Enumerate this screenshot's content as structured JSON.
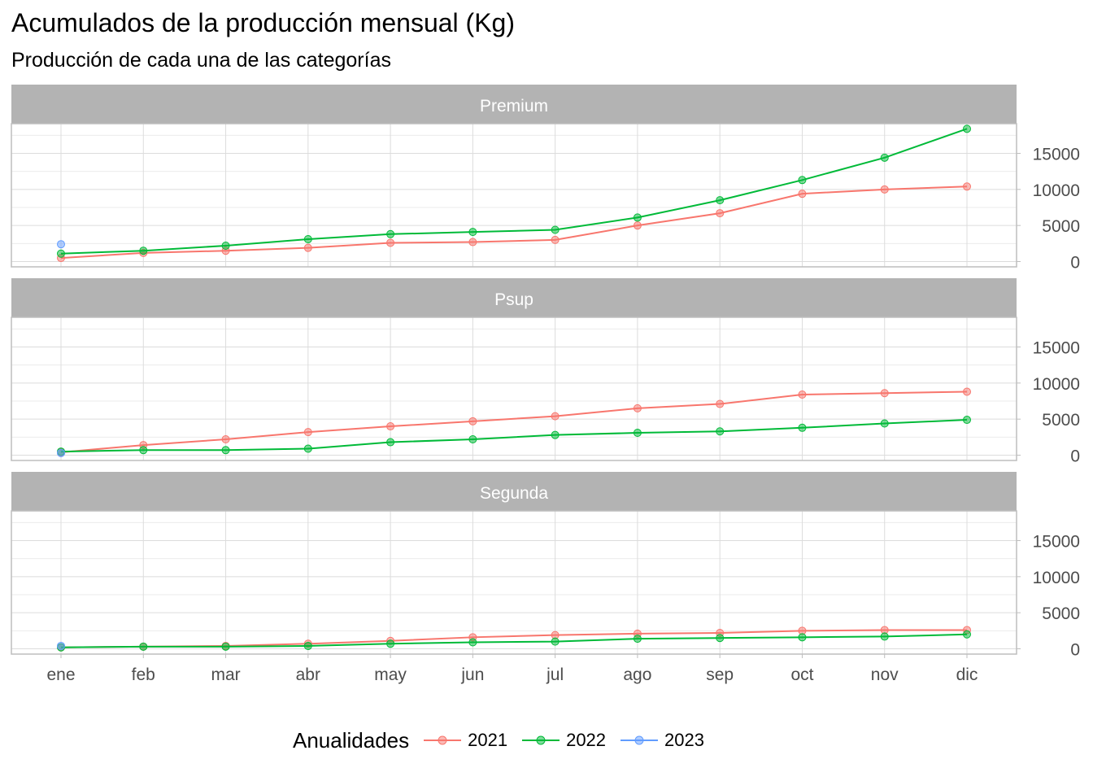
{
  "title": "Acumulados de la producción mensual (Kg)",
  "subtitle": "Producción de cada una de las categorías",
  "legend": {
    "title": "Anualidades",
    "items": [
      {
        "label": "2021",
        "color": "#F8766D"
      },
      {
        "label": "2022",
        "color": "#00BA38"
      },
      {
        "label": "2023",
        "color": "#619CFF"
      }
    ]
  },
  "chart_data": {
    "type": "line",
    "facets": [
      "Premium",
      "Psup",
      "Segunda"
    ],
    "categories": [
      "ene",
      "feb",
      "mar",
      "abr",
      "may",
      "jun",
      "jul",
      "ago",
      "sep",
      "oct",
      "nov",
      "dic"
    ],
    "ylim": [
      0,
      19000
    ],
    "yticks": [
      "0",
      "5000",
      "10000",
      "15000"
    ],
    "y_axis_position": "right",
    "grid": true,
    "legend_position": "bottom",
    "series_colors": {
      "2021": "#F8766D",
      "2022": "#00BA38",
      "2023": "#619CFF"
    },
    "panels": [
      {
        "facet": "Premium",
        "series": [
          {
            "name": "2021",
            "values": [
              500,
              1200,
              1500,
              1900,
              2600,
              2700,
              3000,
              5000,
              6700,
              9400,
              10000,
              10400
            ]
          },
          {
            "name": "2022",
            "values": [
              1100,
              1500,
              2200,
              3100,
              3800,
              4100,
              4400,
              6100,
              8500,
              11300,
              14400,
              18400
            ]
          },
          {
            "name": "2023",
            "values": [
              2400
            ]
          }
        ]
      },
      {
        "facet": "Psup",
        "series": [
          {
            "name": "2021",
            "values": [
              400,
              1400,
              2200,
              3200,
              4000,
              4700,
              5400,
              6500,
              7100,
              8400,
              8600,
              8800
            ]
          },
          {
            "name": "2022",
            "values": [
              500,
              700,
              700,
              900,
              1800,
              2200,
              2800,
              3100,
              3300,
              3800,
              4400,
              4900
            ]
          },
          {
            "name": "2023",
            "values": [
              300
            ]
          }
        ]
      },
      {
        "facet": "Segunda",
        "series": [
          {
            "name": "2021",
            "values": [
              200,
              300,
              400,
              700,
              1100,
              1600,
              1900,
              2100,
              2200,
              2500,
              2600,
              2600
            ]
          },
          {
            "name": "2022",
            "values": [
              200,
              300,
              300,
              400,
              700,
              900,
              1000,
              1400,
              1500,
              1600,
              1700,
              2000
            ]
          },
          {
            "name": "2023",
            "values": [
              400
            ]
          }
        ]
      }
    ]
  }
}
